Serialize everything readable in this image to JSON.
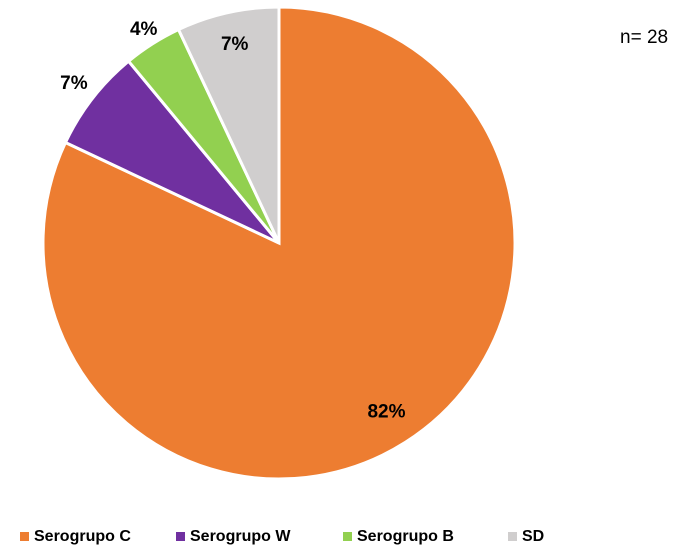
{
  "chart_data": {
    "type": "pie",
    "annotation": "n= 28",
    "categories": [
      "Serogrupo C",
      "Serogrupo W",
      "Serogrupo B",
      "SD"
    ],
    "values": [
      82,
      7,
      4,
      7
    ],
    "value_labels": [
      "82%",
      "7%",
      "4%",
      "7%"
    ],
    "colors": [
      "#ED7D31",
      "#7030A0",
      "#92D050",
      "#D0CECE"
    ],
    "legend": "bottom"
  }
}
